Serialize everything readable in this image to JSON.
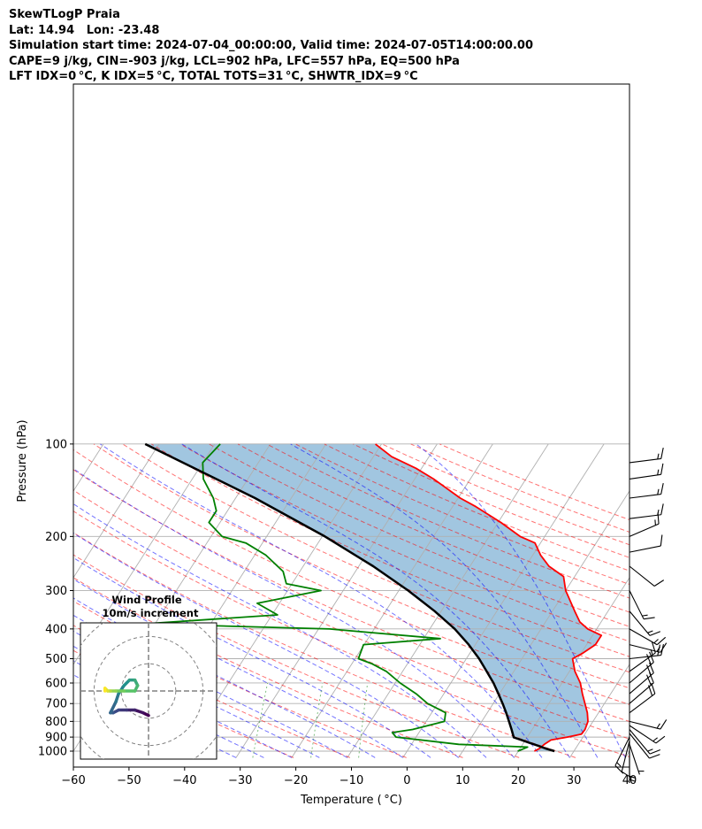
{
  "header": {
    "title": "SkewTLogP Praia",
    "location": "Lat: 14.94   Lon: -23.48",
    "times": "Simulation start time: 2024-07-04_00:00:00, Valid time: 2024-07-05T14:00:00.00",
    "indices1": "CAPE=9 j/kg, CIN=-903 j/kg, LCL=902 hPa, LFC=557 hPa, EQ=500 hPa",
    "indices2": "LFT IDX=0$^\\circ$C, K IDX=5$^\\circ$C, TOTAL TOTS=31$^\\circ$C, SHWTR_IDX=9$^\\circ$C"
  },
  "header_display": {
    "indices2": "LFT IDX=0 °C, K IDX=5 °C, TOTAL TOTS=31 °C, SHWTR_IDX=9 °C"
  },
  "chart_data": {
    "type": "line",
    "subtype": "skew-t log-p",
    "xlabel": "Temperature ( °C)",
    "ylabel": "Pressure (hPa)",
    "xlim": [
      -60,
      40
    ],
    "ylim_hpa": [
      1050,
      100
    ],
    "log_y": true,
    "grid": true,
    "x_ticks": [
      "−60",
      "−50",
      "−40",
      "−30",
      "−20",
      "−10",
      "0",
      "10",
      "20",
      "30",
      "40"
    ],
    "y_ticks": [
      "100",
      "200",
      "300",
      "400",
      "500",
      "600",
      "700",
      "800",
      "900",
      "1000"
    ],
    "series": [
      {
        "role": "temperature",
        "color": "#ff0000",
        "points": [
          [
            1000,
            22.9
          ],
          [
            980,
            23.5
          ],
          [
            950,
            23.9
          ],
          [
            920,
            24.6
          ],
          [
            900,
            27.2
          ],
          [
            880,
            29.4
          ],
          [
            850,
            29.5
          ],
          [
            800,
            29.1
          ],
          [
            750,
            28.0
          ],
          [
            700,
            26.5
          ],
          [
            650,
            24.9
          ],
          [
            600,
            23.3
          ],
          [
            550,
            21.0
          ],
          [
            500,
            19.1
          ],
          [
            480,
            20.3
          ],
          [
            450,
            21.6
          ],
          [
            420,
            21.6
          ],
          [
            400,
            18.4
          ],
          [
            380,
            16.2
          ],
          [
            350,
            14.0
          ],
          [
            300,
            10.0
          ],
          [
            270,
            8.0
          ],
          [
            250,
            4.2
          ],
          [
            230,
            1.4
          ],
          [
            210,
            -1.0
          ],
          [
            200,
            -4.4
          ],
          [
            180,
            -9.5
          ],
          [
            160,
            -15.8
          ],
          [
            150,
            -19.6
          ],
          [
            130,
            -26.6
          ],
          [
            120,
            -31.0
          ],
          [
            110,
            -36.7
          ],
          [
            100,
            -41.1
          ]
        ]
      },
      {
        "role": "dewpoint",
        "color": "#008000",
        "points": [
          [
            1000,
            19.9
          ],
          [
            970,
            21.2
          ],
          [
            950,
            8.5
          ],
          [
            900,
            -3.6
          ],
          [
            870,
            -4.8
          ],
          [
            850,
            -1.5
          ],
          [
            800,
            3.3
          ],
          [
            750,
            2.5
          ],
          [
            700,
            -1.8
          ],
          [
            650,
            -5.0
          ],
          [
            600,
            -9.1
          ],
          [
            550,
            -12.9
          ],
          [
            520,
            -16.3
          ],
          [
            500,
            -19.4
          ],
          [
            450,
            -20.1
          ],
          [
            430,
            -7.0
          ],
          [
            400,
            -28.0
          ],
          [
            385,
            -62.0
          ],
          [
            360,
            -39.0
          ],
          [
            330,
            -44.0
          ],
          [
            300,
            -34.0
          ],
          [
            285,
            -41.0
          ],
          [
            260,
            -43.0
          ],
          [
            230,
            -48.0
          ],
          [
            210,
            -53.0
          ],
          [
            200,
            -58.0
          ],
          [
            180,
            -62.0
          ],
          [
            165,
            -62.0
          ],
          [
            150,
            -64.0
          ],
          [
            130,
            -68.0
          ],
          [
            115,
            -70.0
          ],
          [
            100,
            -69.0
          ]
        ]
      },
      {
        "role": "parcel",
        "color": "#000000",
        "points": [
          [
            1000,
            26.5
          ],
          [
            980,
            24.6
          ],
          [
            960,
            22.9
          ],
          [
            940,
            21.1
          ],
          [
            920,
            19.3
          ],
          [
            902,
            17.6
          ],
          [
            850,
            16.3
          ],
          [
            800,
            14.9
          ],
          [
            750,
            13.4
          ],
          [
            700,
            11.7
          ],
          [
            650,
            9.8
          ],
          [
            600,
            7.7
          ],
          [
            557,
            5.5
          ],
          [
            500,
            2.3
          ],
          [
            450,
            -1.2
          ],
          [
            400,
            -5.5
          ],
          [
            350,
            -11.2
          ],
          [
            300,
            -18.3
          ],
          [
            250,
            -27.4
          ],
          [
            200,
            -39.5
          ],
          [
            150,
            -56.5
          ],
          [
            100,
            -82.5
          ]
        ]
      }
    ],
    "wind_barbs": [
      {
        "p": 1000,
        "u": 0,
        "v": 3
      },
      {
        "p": 975,
        "u": 0,
        "v": 2
      },
      {
        "p": 950,
        "u": -1,
        "v": 3
      },
      {
        "p": 925,
        "u": 1,
        "v": 4
      },
      {
        "p": 900,
        "u": 3,
        "v": 6
      },
      {
        "p": 875,
        "u": -4,
        "v": 5
      },
      {
        "p": 850,
        "u": -5,
        "v": 6
      },
      {
        "p": 825,
        "u": -6,
        "v": 4
      },
      {
        "p": 800,
        "u": -8,
        "v": 2
      },
      {
        "p": 750,
        "u": -8,
        "v": -6
      },
      {
        "p": 700,
        "u": -7,
        "v": -6
      },
      {
        "p": 650,
        "u": -7,
        "v": -6
      },
      {
        "p": 600,
        "u": -7,
        "v": -6
      },
      {
        "p": 550,
        "u": -7,
        "v": -5
      },
      {
        "p": 500,
        "u": -9,
        "v": -1
      },
      {
        "p": 450,
        "u": -8,
        "v": 2
      },
      {
        "p": 400,
        "u": -7,
        "v": 4
      },
      {
        "p": 350,
        "u": -5,
        "v": 6
      },
      {
        "p": 300,
        "u": -3,
        "v": 6
      },
      {
        "p": 250,
        "u": -5,
        "v": 4
      },
      {
        "p": 225,
        "u": -5,
        "v": -1
      },
      {
        "p": 200,
        "u": -7,
        "v": -3
      },
      {
        "p": 175,
        "u": -8,
        "v": -1
      },
      {
        "p": 150,
        "u": -8,
        "v": -1
      },
      {
        "p": 130,
        "u": -7,
        "v": -1
      },
      {
        "p": 115,
        "u": -8,
        "v": -1
      }
    ],
    "inset": {
      "title": "Wind Profile",
      "subtitle": "10m/s increment",
      "rings_ms": [
        10,
        20,
        30
      ],
      "xlim": [
        -25,
        25
      ],
      "ylim": [
        -25,
        25
      ],
      "hodograph": [
        [
          0,
          -9
        ],
        [
          -2,
          -8
        ],
        [
          -5,
          -7
        ],
        [
          -8,
          -7
        ],
        [
          -11,
          -7
        ],
        [
          -13,
          -8
        ],
        [
          -14,
          -8
        ],
        [
          -12,
          -4
        ],
        [
          -11,
          -1
        ],
        [
          -9,
          2
        ],
        [
          -7,
          4
        ],
        [
          -5,
          4
        ],
        [
          -4,
          2
        ],
        [
          -5,
          0
        ],
        [
          -9,
          0
        ],
        [
          -12,
          0
        ],
        [
          -14,
          0
        ],
        [
          -15,
          0
        ],
        [
          -16,
          1
        ],
        [
          -16,
          0
        ]
      ]
    }
  }
}
